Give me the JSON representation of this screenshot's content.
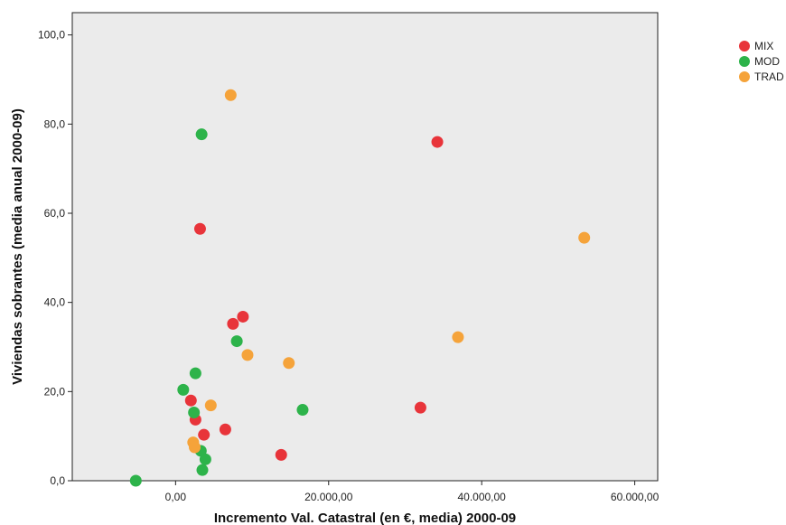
{
  "chart_data": {
    "type": "scatter",
    "title": "",
    "xlabel": "Incremento Val. Catastral (en €, media) 2000-09",
    "ylabel": "Viviendas sobrantes (media anual 2000-09)",
    "xlim": [
      -13500,
      63000
    ],
    "ylim": [
      0,
      105
    ],
    "xticks": [
      0,
      20000,
      40000,
      60000
    ],
    "xtick_labels": [
      "0,00",
      "20.000,00",
      "40.000,00",
      "60.000,00"
    ],
    "yticks": [
      0,
      20,
      40,
      60,
      80,
      100
    ],
    "ytick_labels": [
      "0,0",
      "20,0",
      "40,0",
      "60,0",
      "80,0",
      "100,0"
    ],
    "grid": false,
    "legend_position": "right",
    "series": [
      {
        "name": "MIX",
        "color": "#e8343a",
        "points": [
          {
            "x": 34200,
            "y": 76.0
          },
          {
            "x": 3200,
            "y": 56.5
          },
          {
            "x": 8800,
            "y": 36.8
          },
          {
            "x": 7500,
            "y": 35.2
          },
          {
            "x": 2000,
            "y": 18.0
          },
          {
            "x": 2600,
            "y": 13.7
          },
          {
            "x": 3700,
            "y": 10.3
          },
          {
            "x": 6500,
            "y": 11.5
          },
          {
            "x": 32000,
            "y": 16.4
          },
          {
            "x": 13800,
            "y": 5.8
          }
        ]
      },
      {
        "name": "MOD",
        "color": "#2db34a",
        "points": [
          {
            "x": 3400,
            "y": 77.7
          },
          {
            "x": 8000,
            "y": 31.3
          },
          {
            "x": 2600,
            "y": 24.1
          },
          {
            "x": 1000,
            "y": 20.4
          },
          {
            "x": 2400,
            "y": 15.3
          },
          {
            "x": 16600,
            "y": 15.9
          },
          {
            "x": 3300,
            "y": 6.7
          },
          {
            "x": 3900,
            "y": 4.8
          },
          {
            "x": 3500,
            "y": 2.4
          },
          {
            "x": -5200,
            "y": 0.0
          }
        ]
      },
      {
        "name": "TRAD",
        "color": "#f5a33a",
        "points": [
          {
            "x": 7200,
            "y": 86.5
          },
          {
            "x": 53400,
            "y": 54.5
          },
          {
            "x": 36900,
            "y": 32.2
          },
          {
            "x": 9400,
            "y": 28.2
          },
          {
            "x": 14800,
            "y": 26.4
          },
          {
            "x": 4600,
            "y": 16.9
          },
          {
            "x": 2300,
            "y": 8.6
          },
          {
            "x": 2500,
            "y": 7.5
          }
        ]
      }
    ]
  }
}
